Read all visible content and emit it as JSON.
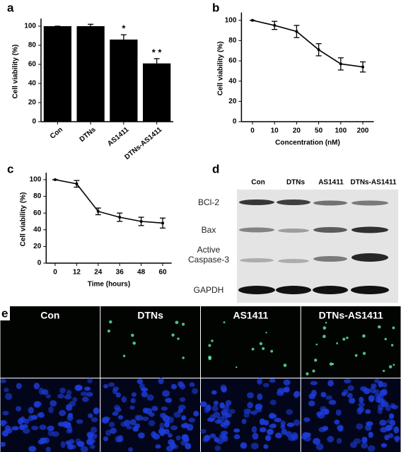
{
  "chart_data": [
    {
      "type": "bar",
      "panel_label": "a",
      "y_label": "Cell viability (%)",
      "categories": [
        "Con",
        "DTNs",
        "AS1411",
        "DTNs-AS1411"
      ],
      "values": [
        100,
        100,
        86,
        61
      ],
      "errors": [
        0,
        2,
        5,
        5
      ],
      "color": "#000000",
      "ylim": [
        0,
        105
      ],
      "yticks": [
        0,
        20,
        40,
        60,
        80,
        100
      ],
      "annotations": [
        {
          "text": "*",
          "x": "AS1411"
        },
        {
          "text": "* *",
          "x": "DTNs-AS1411"
        }
      ]
    },
    {
      "type": "line",
      "panel_label": "b",
      "y_label": "Cell viability (%)",
      "x_label": "Concentration (nM)",
      "categories": [
        "0",
        "10",
        "20",
        "50",
        "100",
        "200"
      ],
      "values": [
        100,
        95,
        89,
        71,
        57,
        54
      ],
      "errors": [
        0,
        4,
        6,
        6,
        6,
        5
      ],
      "color": "#000000",
      "ylim": [
        0,
        105
      ],
      "yticks": [
        0,
        20,
        40,
        60,
        80,
        100
      ]
    },
    {
      "type": "line",
      "panel_label": "c",
      "y_label": "Cell viability (%)",
      "x_label": "Time (hours)",
      "x": [
        0,
        12,
        24,
        36,
        48,
        60
      ],
      "values": [
        100,
        95,
        62,
        55,
        50,
        48
      ],
      "errors": [
        0,
        4,
        4,
        5,
        5,
        6
      ],
      "color": "#000000",
      "xlim": [
        -5,
        65
      ],
      "xticks": [
        0,
        12,
        24,
        36,
        48,
        60
      ],
      "ylim": [
        0,
        105
      ],
      "yticks": [
        0,
        20,
        40,
        60,
        80,
        100
      ]
    }
  ],
  "blot": {
    "panel_label": "d",
    "lanes": [
      "Con",
      "DTNs",
      "AS1411",
      "DTNs-AS1411"
    ],
    "rows": [
      "BCl-2",
      "Bax",
      "Active Caspase-3",
      "GAPDH"
    ]
  },
  "micrographs": {
    "panel_label": "e",
    "columns": [
      "Con",
      "DTNs",
      "AS1411",
      "DTNs-AS1411"
    ]
  }
}
